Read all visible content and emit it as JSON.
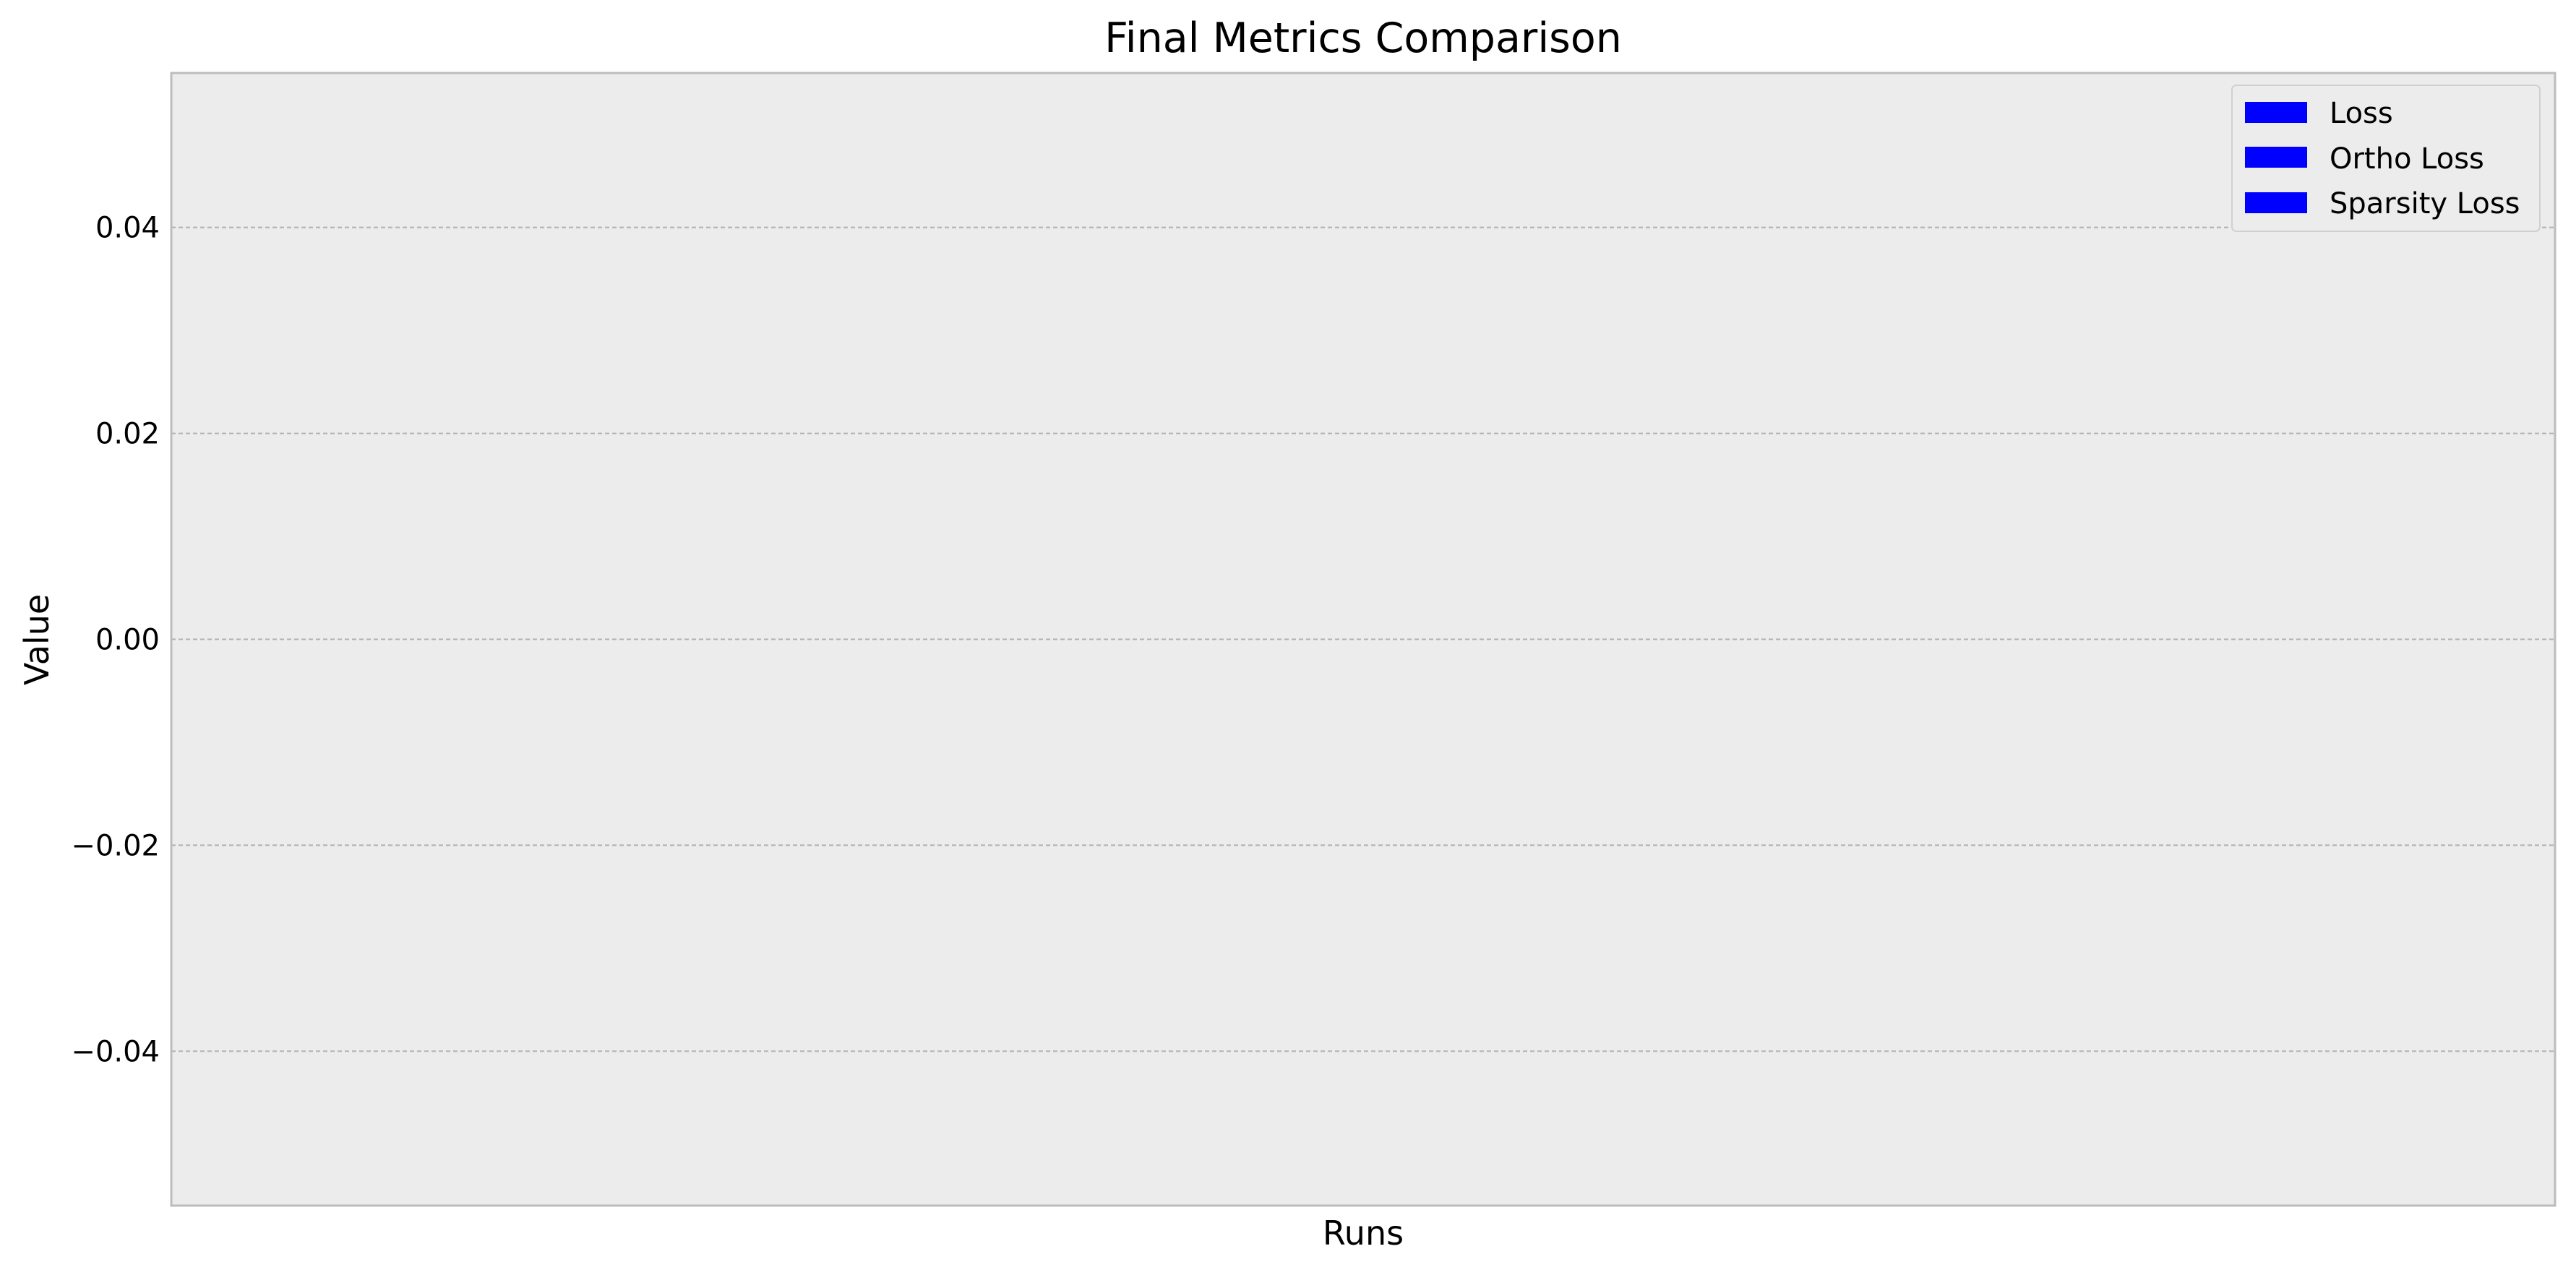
{
  "chart_data": {
    "type": "bar",
    "title": "Final Metrics Comparison",
    "xlabel": "Runs",
    "ylabel": "Value",
    "categories": [],
    "ylim": [
      -0.055,
      0.055
    ],
    "yticks": [
      -0.04,
      -0.02,
      0.0,
      0.02,
      0.04
    ],
    "ytick_labels": [
      "−0.04",
      "−0.02",
      "0.00",
      "0.02",
      "0.04"
    ],
    "grid": true,
    "legend_position": "top-right",
    "series": [
      {
        "name": "Loss",
        "color": "#0000ff",
        "values": []
      },
      {
        "name": "Ortho Loss",
        "color": "#0000ff",
        "values": []
      },
      {
        "name": "Sparsity Loss",
        "color": "#0000ff",
        "values": []
      }
    ]
  },
  "colors": {
    "plot_background": "#ececec",
    "grid": "#b0b0b0",
    "frame": "#bcbcbc"
  }
}
